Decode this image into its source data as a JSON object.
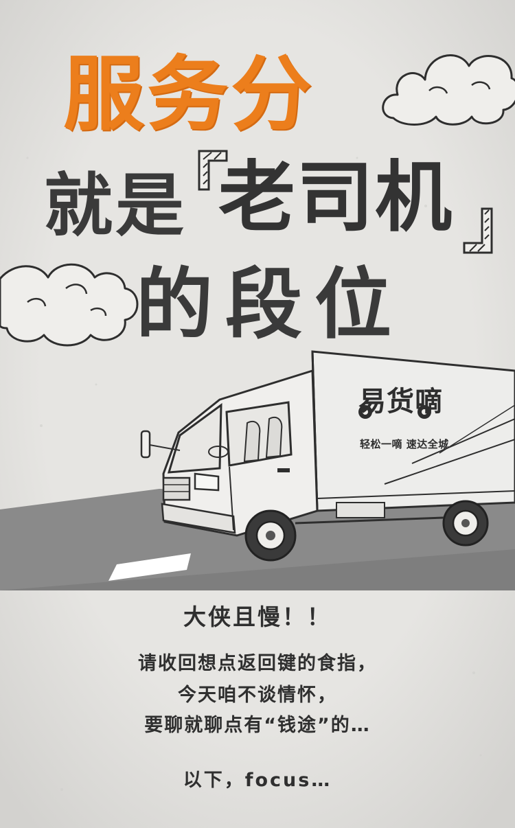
{
  "poster": {
    "title_line1": "服务分",
    "title_line2_prefix": "就是",
    "title_line2_highlight": "老司机",
    "title_line3": "的段位",
    "headline": "大侠且慢！！",
    "body_lines": [
      "请收回想点返回键的食指，",
      "今天咱不谈情怀，",
      "要聊就聊点有“钱途”的…"
    ],
    "ending": "以下，focus…"
  },
  "truck": {
    "brand_logo": "易货嘀",
    "slogan": "轻松一嘀 速达全城"
  },
  "colors": {
    "accent": "#ec7e1c",
    "ink": "#333333",
    "paper": "#e3e2df",
    "road": "#8c8c8c"
  }
}
